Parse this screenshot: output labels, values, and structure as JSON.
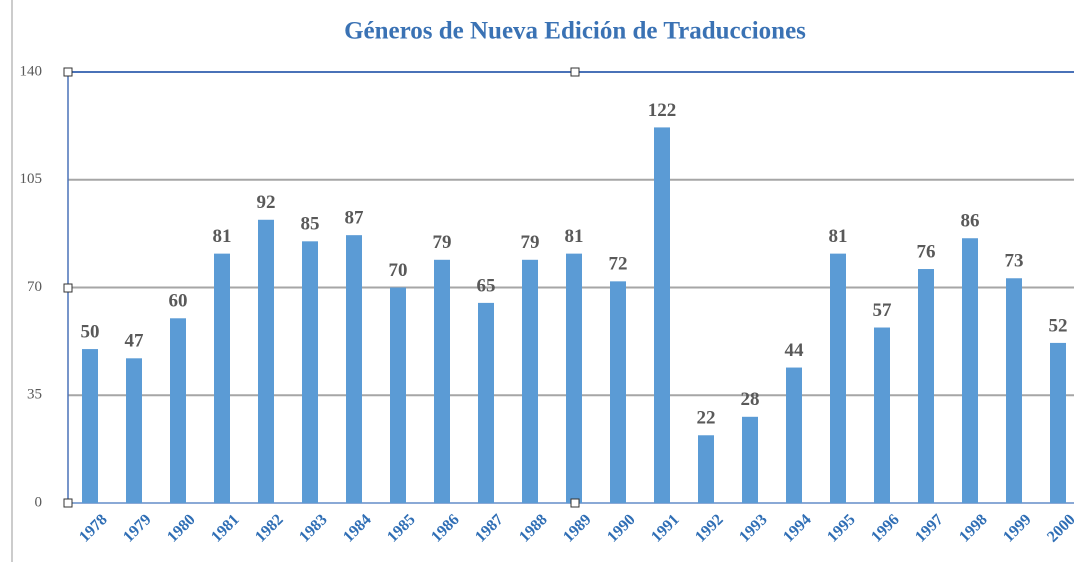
{
  "chart_data": {
    "type": "bar",
    "title": "Géneros de Nueva Edición de Traducciones",
    "categories": [
      "1978",
      "1979",
      "1980",
      "1981",
      "1982",
      "1983",
      "1984",
      "1985",
      "1986",
      "1987",
      "1988",
      "1989",
      "1990",
      "1991",
      "1992",
      "1993",
      "1994",
      "1995",
      "1996",
      "1997",
      "1998",
      "1999",
      "2000"
    ],
    "values": [
      50,
      47,
      60,
      81,
      92,
      85,
      87,
      70,
      79,
      65,
      79,
      81,
      72,
      122,
      22,
      28,
      44,
      81,
      57,
      76,
      86,
      73,
      52
    ],
    "color": "#5b9bd5",
    "ylim": [
      0,
      140
    ],
    "yticks": [
      0,
      35,
      70,
      105,
      140
    ],
    "grid": true
  }
}
